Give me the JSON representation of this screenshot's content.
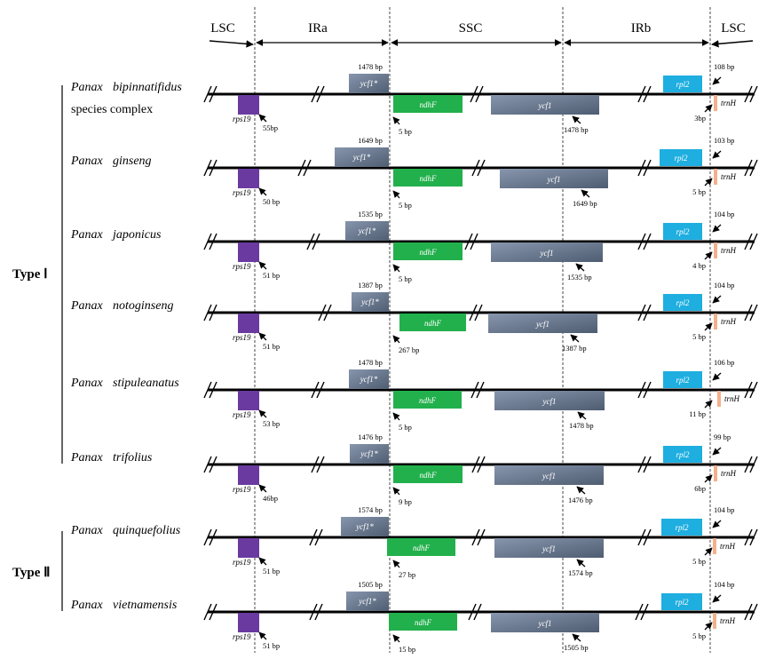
{
  "regions": [
    "LSC",
    "IRa",
    "SSC",
    "IRb",
    "LSC"
  ],
  "colors": {
    "rps19": "#6a3aa0",
    "ycf1": "#6f7f96",
    "ndhF": "#22b04c",
    "rpl2": "#1eaee0",
    "trnH": "#f4b08a",
    "line": "#000000"
  },
  "genes": {
    "rps19": "rps19",
    "ycf1_star": "ycf1*",
    "ndhF": "ndhF",
    "ycf1": "ycf1",
    "rpl2": "rpl2",
    "trnH": "trnH"
  },
  "types": [
    {
      "label": "Type Ⅰ",
      "rows": [
        0,
        1,
        2,
        3,
        4,
        5
      ]
    },
    {
      "label": "Type Ⅱ",
      "rows": [
        6,
        7
      ]
    }
  ],
  "species": [
    {
      "genus": "Panax",
      "epithet": "bipinnatifidus",
      "extra": "species  complex",
      "ycf1_top": "1478 bp",
      "rps19": "55bp",
      "ndhF": "5 bp",
      "ycf1_bottom": "1478 bp",
      "rpl2": "108 bp",
      "trnH": "3bp"
    },
    {
      "genus": "Panax",
      "epithet": "ginseng",
      "extra": "",
      "ycf1_top": "1649 bp",
      "rps19": "50 bp",
      "ndhF": "5 bp",
      "ycf1_bottom": "1649 bp",
      "rpl2": "103 bp",
      "trnH": "5 bp"
    },
    {
      "genus": "Panax",
      "epithet": "japonicus",
      "extra": "",
      "ycf1_top": "1535 bp",
      "rps19": "51 bp",
      "ndhF": "5 bp",
      "ycf1_bottom": "1535 bp",
      "rpl2": "104 bp",
      "trnH": "4 bp"
    },
    {
      "genus": "Panax",
      "epithet": "notoginseng",
      "extra": "",
      "ycf1_top": "1387 bp",
      "rps19": "51 bp",
      "ndhF": "267 bp",
      "ycf1_bottom": "1387 bp",
      "rpl2": "104 bp",
      "trnH": "5 bp"
    },
    {
      "genus": "Panax",
      "epithet": "stipuleanatus",
      "extra": "",
      "ycf1_top": "1478 bp",
      "rps19": "53 bp",
      "ndhF": "5 bp",
      "ycf1_bottom": "1478 bp",
      "rpl2": "106 bp",
      "trnH": "11 bp"
    },
    {
      "genus": "Panax",
      "epithet": "trifolius",
      "extra": "",
      "ycf1_top": "1476 bp",
      "rps19": "46bp",
      "ndhF": "9 bp",
      "ycf1_bottom": "1476 bp",
      "rpl2": "99 bp",
      "trnH": "6bp"
    },
    {
      "genus": "Panax",
      "epithet": "quinquefolius",
      "extra": "",
      "ycf1_top": "1574 bp",
      "rps19": "51 bp",
      "ndhF": "27 bp",
      "ycf1_bottom": "1574 bp",
      "rpl2": "104 bp",
      "trnH": "5 bp"
    },
    {
      "genus": "Panax",
      "epithet": "vietnamensis",
      "extra": "",
      "ycf1_top": "1505 bp",
      "rps19": "51 bp",
      "ndhF": "15 bp",
      "ycf1_bottom": "1505 bp",
      "rpl2": "104 bp",
      "trnH": "5 bp"
    }
  ]
}
